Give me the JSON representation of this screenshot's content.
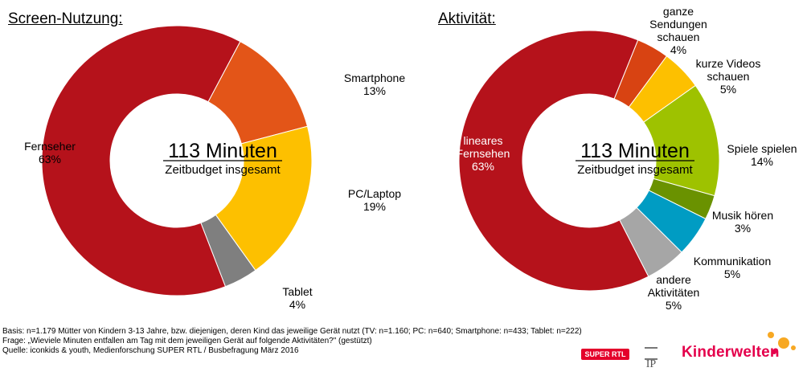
{
  "colors": {
    "red": "#b5121b",
    "orange": "#e35518",
    "yellow": "#fdc000",
    "gray": "#7f7f7f",
    "darkorange": "#d84312",
    "green": "#9ec200",
    "darkgreen": "#6a9200",
    "blue": "#009cc3",
    "lightgray": "#a6a6a6",
    "brand_pink": "#e4004b",
    "brand_orange": "#f7a823"
  },
  "chart_data": [
    {
      "type": "pie",
      "title": "Screen-Nutzung:",
      "center_value": "113 Minuten",
      "center_caption": "Zeitbudget insgesamt",
      "slices": [
        {
          "label": [
            "Smartphone"
          ],
          "pct": "13%",
          "value": 13,
          "color": "#e35518"
        },
        {
          "label": [
            "PC/Laptop"
          ],
          "pct": "19%",
          "value": 19,
          "color": "#fdc000"
        },
        {
          "label": [
            "Tablet"
          ],
          "pct": "4%",
          "value": 4,
          "color": "#7f7f7f"
        },
        {
          "label": [
            "Fernseher"
          ],
          "pct": "63%",
          "value": 63,
          "color": "#b5121b"
        }
      ]
    },
    {
      "type": "pie",
      "title": "Aktivität:",
      "center_value": "113 Minuten",
      "center_caption": "Zeitbudget insgesamt",
      "slices": [
        {
          "label": [
            "ganze",
            "Sendungen",
            "schauen"
          ],
          "pct": "4%",
          "value": 4,
          "color": "#d84312"
        },
        {
          "label": [
            "kurze Videos",
            "schauen"
          ],
          "pct": "5%",
          "value": 5,
          "color": "#fdc000"
        },
        {
          "label": [
            "Spiele spielen"
          ],
          "pct": "14%",
          "value": 14,
          "color": "#9ec200"
        },
        {
          "label": [
            "Musik hören"
          ],
          "pct": "3%",
          "value": 3,
          "color": "#6a9200"
        },
        {
          "label": [
            "Kommunikation"
          ],
          "pct": "5%",
          "value": 5,
          "color": "#009cc3"
        },
        {
          "label": [
            "andere",
            "Aktivitäten"
          ],
          "pct": "5%",
          "value": 5,
          "color": "#a6a6a6"
        },
        {
          "label": [
            "lineares",
            "Fernsehen"
          ],
          "pct": "63%",
          "value": 63,
          "color": "#b5121b"
        }
      ]
    }
  ],
  "footer": {
    "basis": "Basis: n=1.179 Mütter von Kindern 3-13 Jahre, bzw. diejenigen, deren Kind das jeweilige Gerät nutzt (TV: n=1.160; PC: n=640; Smartphone: n=433; Tablet: n=222)",
    "frage": "Frage: „Wieviele Minuten entfallen am Tag mit dem jeweiligen Gerät auf folgende Aktivitäten?\" (gestützt)",
    "quelle": "Quelle: iconkids & youth, Medienforschung SUPER RTL / Busbefragung März 2016"
  },
  "logos": {
    "super_rtl": "SUPER RTL",
    "ip": "IP",
    "kinderwelten": "Kinderwelten"
  }
}
